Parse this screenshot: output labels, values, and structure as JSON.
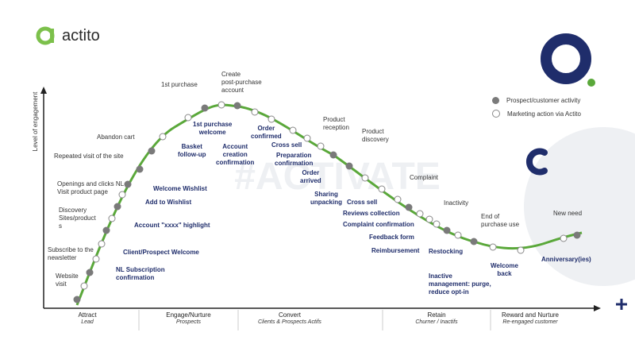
{
  "brand": {
    "logo_text": "actito",
    "logo_color": "#7cc04b",
    "navy": "#1f2d6b",
    "green": "#5aa83a"
  },
  "watermark": "#ACTIVATE",
  "legend": {
    "activity": "Prospect/customer activity",
    "marketing": "Marketing action via Actito"
  },
  "axis": {
    "ylabel": "Level of engagement"
  },
  "stages": [
    {
      "name": "Attract",
      "sub": "Lead"
    },
    {
      "name": "Engage/Nurture",
      "sub": "Prospects"
    },
    {
      "name": "Convert",
      "sub": "Clients & Prospects Actifs"
    },
    {
      "name": "Retain",
      "sub": "Churner / Inactifs"
    },
    {
      "name": "Reward and Nurture",
      "sub": "Re-engaged customer"
    }
  ],
  "activity_labels": {
    "website_visit": "Website\nvisit",
    "subscribe": "Subscribe to the\nnewsletter",
    "discovery": "Discovery\nSites/product\ns",
    "openings": "Openings and clicks NL\nVisit product page",
    "repeated": "Repeated visit of the site",
    "abandon": "Abandon cart",
    "first_purchase": "1st purchase",
    "create_account": "Create\npost-purchase\naccount",
    "product_reception": "Product\nreception",
    "product_discovery": "Product\ndiscovery",
    "complaint": "Complaint",
    "inactivity": "Inactivity",
    "end_purchase": "End of\npurchase use",
    "new_need": "New need"
  },
  "marketing_labels": {
    "nl_confirmation": "NL Subscription\nconfirmation",
    "client_welcome": "Client/Prospect Welcome",
    "highlight": "Account \"xxxx\" highlight",
    "add_wishlist": "Add to Wishlist",
    "welcome_wishlist": "Welcome Wishlist",
    "basket_followup": "Basket\nfollow-up",
    "purchase_welcome": "1st purchase\nwelcome",
    "account_creation": "Account\ncreation\nconfirmation",
    "order_confirmed": "Order\nconfirmed",
    "cross_sell_1": "Cross sell",
    "prep_confirmation": "Preparation\nconfirmation",
    "order_arrived": "Order\narrived",
    "sharing_unpacking": "Sharing\nunpacking",
    "cross_sell_2": "Cross sell",
    "reviews": "Reviews collection",
    "complaint_confirmation": "Complaint confirmation",
    "feedback": "Feedback form",
    "reimbursement": "Reimbursement",
    "restocking": "Restocking",
    "inactive_mgmt": "Inactive\nmanagement: purge,\nreduce opt-in",
    "welcome_back": "Welcome\nback",
    "anniversary": "Anniversary(ies)"
  }
}
